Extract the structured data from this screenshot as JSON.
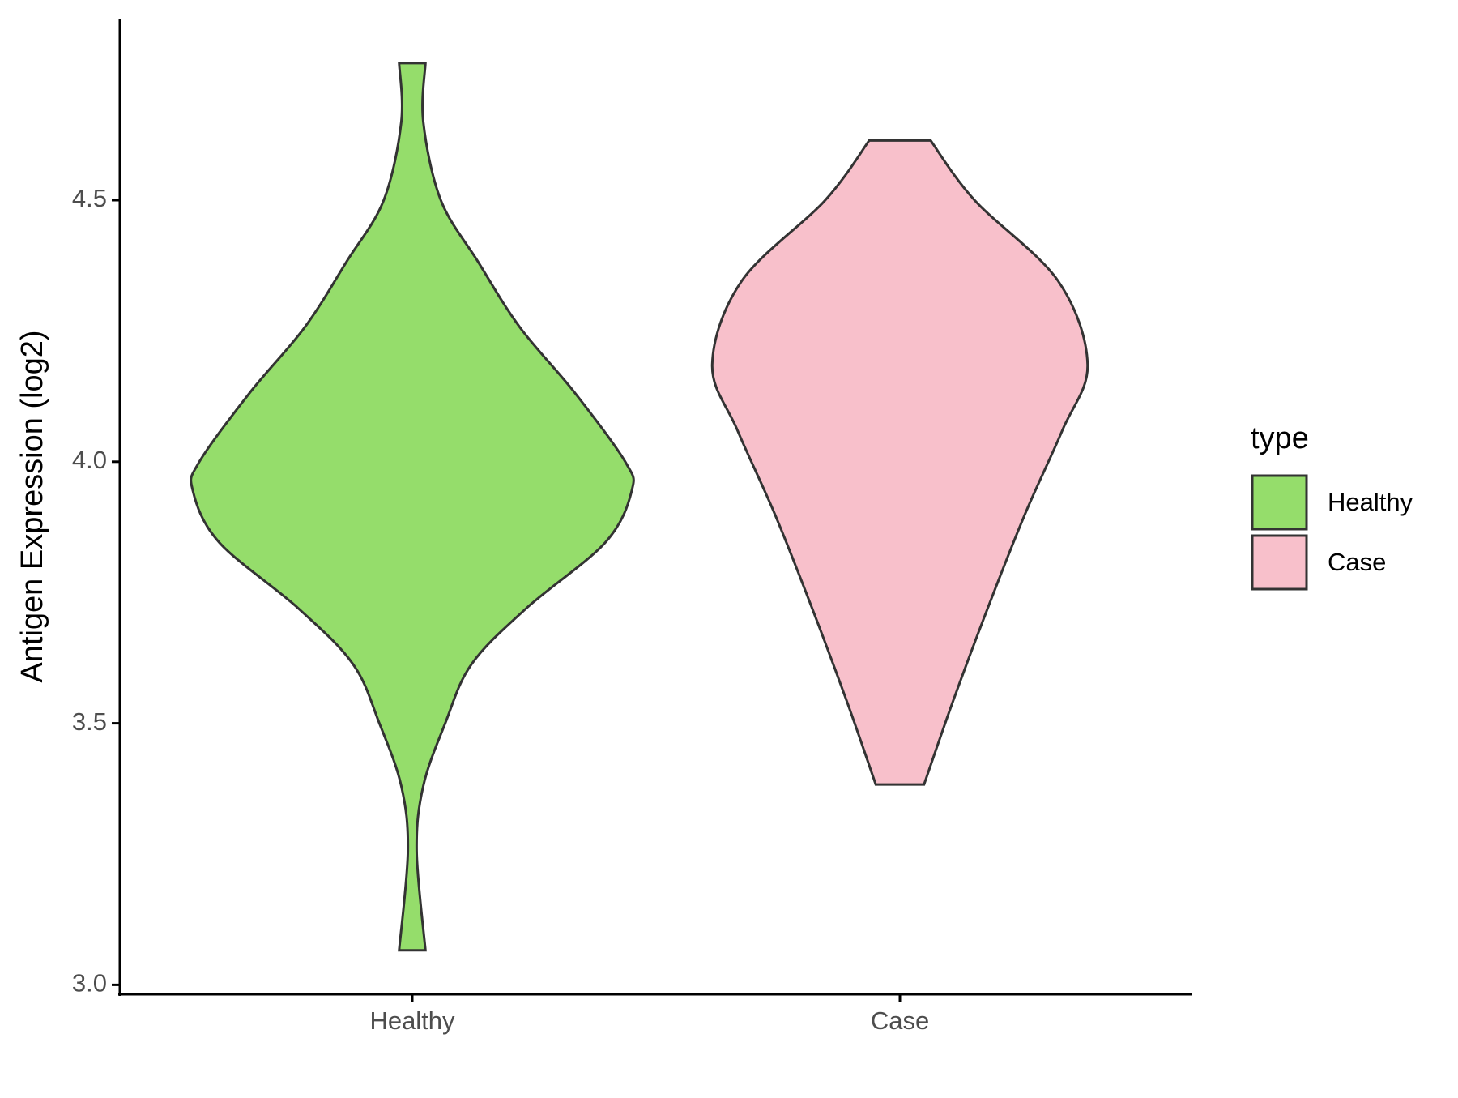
{
  "chart_data": {
    "type": "violin",
    "y_label": "Antigen Expression (log2)",
    "categories": [
      "Healthy",
      "Case"
    ],
    "series": [
      {
        "name": "Healthy",
        "color": "#95dd6b",
        "y": [
          4.762,
          4.65,
          4.5,
          4.382,
          4.257,
          4.132,
          4.0,
          3.945,
          3.846,
          3.72,
          3.613,
          3.5,
          3.38,
          3.256,
          3.066
        ],
        "density": [
          0.06,
          0.05,
          0.13,
          0.3,
          0.49,
          0.74,
          0.97,
          1.0,
          0.88,
          0.52,
          0.27,
          0.15,
          0.05,
          0.02,
          0.06
        ]
      },
      {
        "name": "Case",
        "color": "#f8c0cb",
        "y": [
          4.614,
          4.5,
          4.346,
          4.186,
          4.06,
          3.9,
          3.72,
          3.54,
          3.383
        ],
        "density": [
          0.14,
          0.34,
          0.72,
          0.855,
          0.74,
          0.57,
          0.4,
          0.24,
          0.11
        ]
      }
    ],
    "ylim": [
      2.982,
      4.847
    ],
    "yticks": [
      {
        "value": 3,
        "label": "3.0"
      },
      3.5,
      {
        "value": 4,
        "label": "4.0"
      },
      4.5
    ],
    "legend_title": "type",
    "legend": "right"
  }
}
